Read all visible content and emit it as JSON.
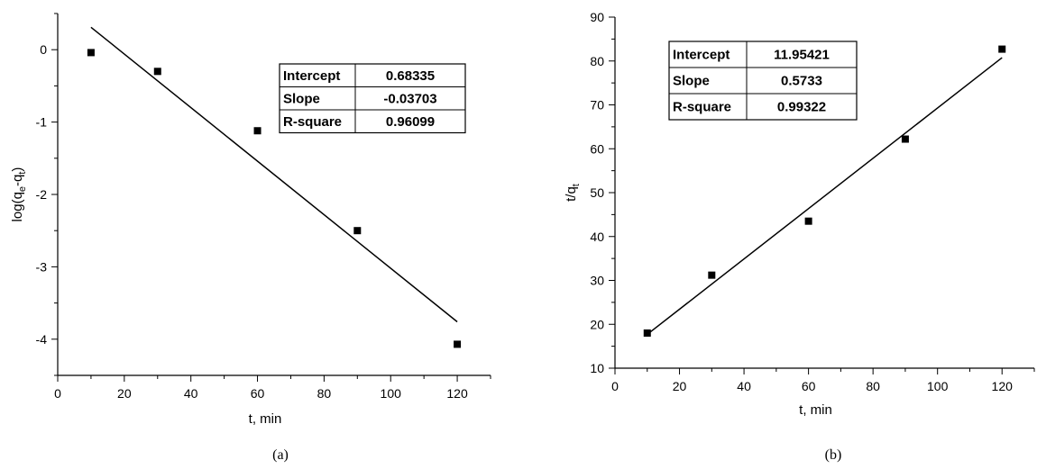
{
  "chart_data": [
    {
      "type": "scatter",
      "caption": "(a)",
      "xlabel": "t, min",
      "ylabel": "log(q",
      "ylabel_sub1": "e",
      "ylabel_mid": "-q",
      "ylabel_sub2": "t",
      "ylabel_end": ")",
      "xlim": [
        0,
        130
      ],
      "ylim": [
        -4.5,
        0.5
      ],
      "xticks": [
        0,
        20,
        40,
        60,
        80,
        100,
        120
      ],
      "yticks": [
        0,
        -1,
        -2,
        -3,
        -4
      ],
      "series": [
        {
          "x": [
            10,
            30,
            60,
            90,
            120
          ],
          "y": [
            -0.04,
            -0.3,
            -1.12,
            -2.5,
            -4.07
          ]
        }
      ],
      "fit_line": {
        "x": [
          10,
          120
        ],
        "y": [
          0.31,
          -3.76
        ]
      },
      "stats_table": [
        {
          "label": "Intercept",
          "value": "0.68335"
        },
        {
          "label": "Slope",
          "value": "-0.03703"
        },
        {
          "label": "R-square",
          "value": "0.96099"
        }
      ]
    },
    {
      "type": "scatter",
      "caption": "(b)",
      "xlabel": "t, min",
      "ylabel": "t/q",
      "ylabel_sub": "t",
      "xlim": [
        0,
        130
      ],
      "ylim": [
        10,
        90
      ],
      "xticks": [
        0,
        20,
        40,
        60,
        80,
        100,
        120
      ],
      "yticks": [
        10,
        20,
        30,
        40,
        50,
        60,
        70,
        80,
        90
      ],
      "series": [
        {
          "x": [
            10,
            30,
            60,
            90,
            120
          ],
          "y": [
            18,
            31.2,
            43.5,
            62.2,
            82.7
          ]
        }
      ],
      "fit_line": {
        "x": [
          10,
          120
        ],
        "y": [
          17.7,
          80.75
        ]
      },
      "stats_table": [
        {
          "label": "Intercept",
          "value": "11.95421"
        },
        {
          "label": "Slope",
          "value": "0.5733"
        },
        {
          "label": "R-square",
          "value": "0.99322"
        }
      ]
    }
  ]
}
